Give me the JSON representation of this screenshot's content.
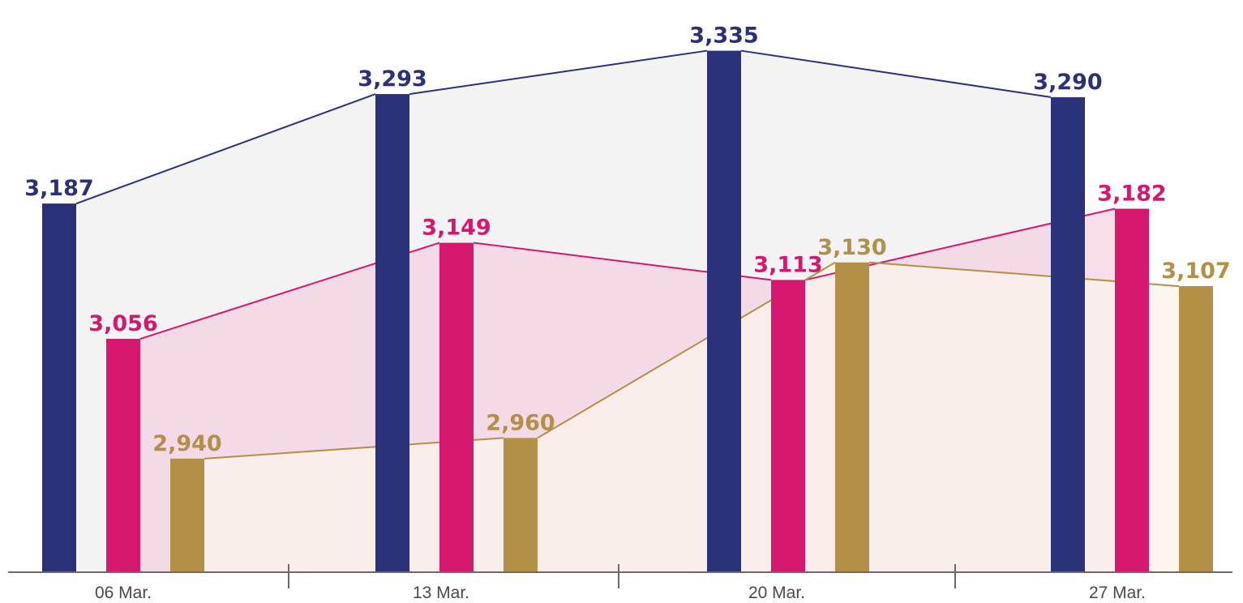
{
  "chart_data": {
    "type": "bar",
    "categories": [
      "06 Mar.",
      "13 Mar.",
      "20 Mar.",
      "27 Mar."
    ],
    "series": [
      {
        "values": [
          3187,
          3293,
          3335,
          3290
        ],
        "color": "#2b3178",
        "area_fill": "#efeff0"
      },
      {
        "values": [
          3056,
          3149,
          3113,
          3182
        ],
        "color": "#d5186e",
        "area_fill": "#f3d2e1"
      },
      {
        "values": [
          2940,
          2960,
          3130,
          3107
        ],
        "color": "#b48f47",
        "area_fill": "#fbf3ea"
      }
    ],
    "value_labels": [
      [
        "3,187",
        "3,293",
        "3,335",
        "3,290"
      ],
      [
        "3,056",
        "3,149",
        "3,113",
        "3,182"
      ],
      [
        "2,940",
        "2,960",
        "3,130",
        "3,107"
      ]
    ],
    "ylim": [
      2830,
      3348
    ],
    "grid": false,
    "title": "",
    "xlabel": "",
    "ylabel": ""
  }
}
